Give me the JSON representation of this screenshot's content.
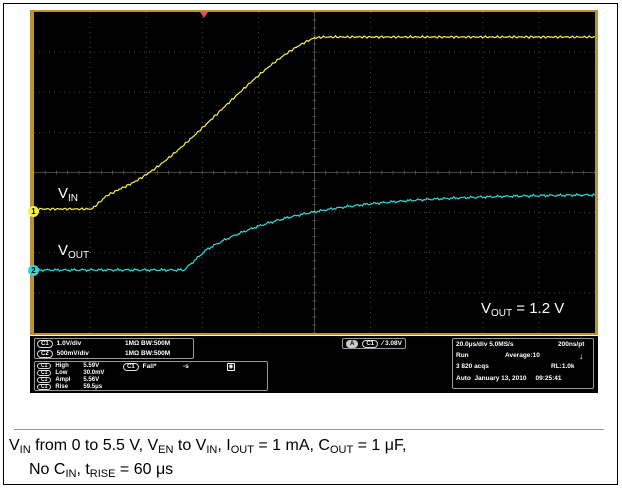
{
  "oscilloscope": {
    "trace_colors": {
      "ch1": "#f5f050",
      "ch2": "#33d6d6",
      "grid": "#5a5a5a"
    },
    "labels": {
      "vin": {
        "main": "V",
        "sub": "IN"
      },
      "vout": {
        "main": "V",
        "sub": "OUT"
      },
      "vout_value": {
        "main": "V",
        "sub": "OUT",
        "rest": " = 1.2 V"
      }
    },
    "channel_markers": {
      "ch1": "1",
      "ch2": "2"
    },
    "trigger_icon": "trigger-position-icon"
  },
  "status_bar": {
    "ch1_scale": {
      "pill": "C1",
      "vdiv": "1.0V/div",
      "imp": "1MΩ B",
      "bw": "W:500M"
    },
    "ch2_scale": {
      "pill": "C2",
      "vdiv": "500mV/div",
      "imp": "1MΩ B",
      "bw": "W:500M"
    },
    "measurements": [
      {
        "pill": "C1",
        "name": "High",
        "value": "5.59V"
      },
      {
        "pill": "C1",
        "name": "Low",
        "value": "30.0mV"
      },
      {
        "pill": "C1",
        "name": "Ampl",
        "value": "5.56V"
      },
      {
        "pill": "C1",
        "name": "Rise",
        "value": "59.5μs"
      }
    ],
    "fall_meas": {
      "pill": "C1",
      "name": "Fall*",
      "value": "-s"
    },
    "trigger": {
      "mode_pill": "A",
      "source_pill": "C1",
      "slope_icon": "rising-edge-icon",
      "level": "3.08V"
    },
    "acquisition": {
      "timebase": "20.0μs/div",
      "samplerate": "5.0MS/s",
      "resolution": "200ns/pt",
      "state": "Run",
      "average": "Average:10",
      "acqs": "3 820 acqs",
      "record": "RL:1.0k",
      "mode": "Auto",
      "date": "January 13, 2010",
      "time": "09:25:41"
    }
  },
  "caption": {
    "line1": [
      {
        "t": "V"
      },
      {
        "s": "IN"
      },
      {
        "t": " from 0 to 5.5 V, V"
      },
      {
        "s": "EN"
      },
      {
        "t": " to V"
      },
      {
        "s": "IN"
      },
      {
        "t": ", I"
      },
      {
        "s": "OUT"
      },
      {
        "t": " = 1 mA, C"
      },
      {
        "s": "OUT"
      },
      {
        "t": " = 1 μF,"
      }
    ],
    "line2": [
      {
        "t": "No C"
      },
      {
        "s": "IN"
      },
      {
        "t": ", t"
      },
      {
        "s": "RISE"
      },
      {
        "t": " = 60 μs"
      }
    ]
  }
}
